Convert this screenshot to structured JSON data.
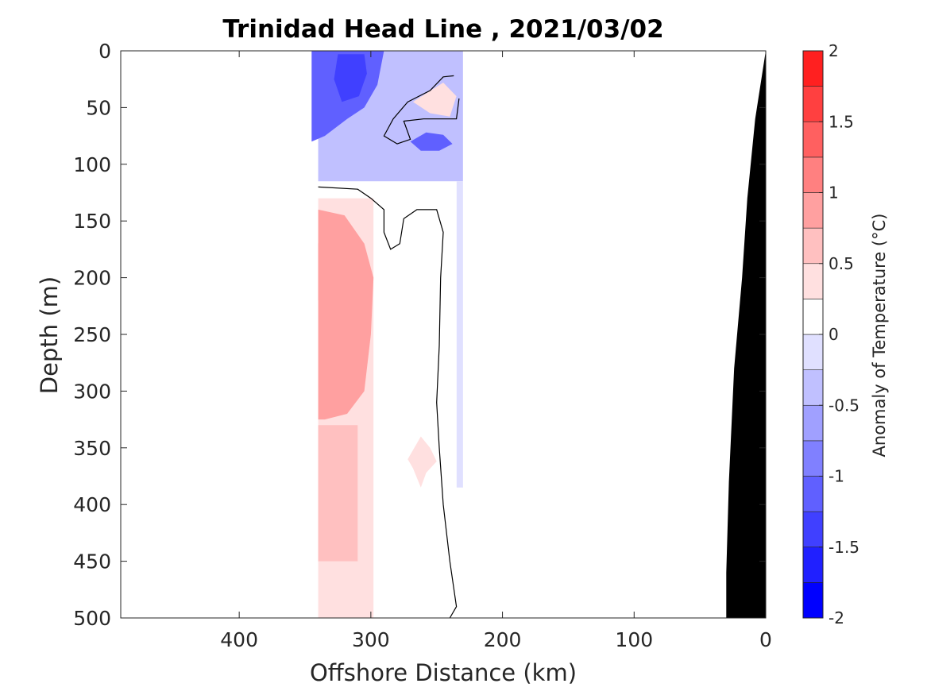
{
  "chart_data": {
    "type": "contour",
    "title": "Trinidad Head Line , 2021/03/02",
    "xlabel": "Offshore Distance (km)",
    "ylabel": "Depth (m)",
    "xlim": [
      490,
      0
    ],
    "ylim": [
      0,
      500
    ],
    "x_reversed": true,
    "y_reversed": true,
    "xticks": [
      400,
      300,
      200,
      100,
      0
    ],
    "yticks": [
      0,
      50,
      100,
      150,
      200,
      250,
      300,
      350,
      400,
      450,
      500
    ],
    "colorbar": {
      "label": "Anomaly of Temperature (°C)",
      "range": [
        -2,
        2
      ],
      "step": 0.25,
      "ticks": [
        "2",
        "1.5",
        "1",
        "0.5",
        "0",
        "-0.5",
        "-1",
        "-1.5",
        "-2"
      ],
      "colors": {
        "-2": "#0000ff",
        "-1.75": "#2020ff",
        "-1.5": "#4040ff",
        "-1.25": "#6060ff",
        "-1": "#8080ff",
        "-0.75": "#a0a0ff",
        "-0.5": "#c0c0ff",
        "-0.25": "#e0e0ff",
        "0": "#ffffff",
        "0.25": "#ffe0e0",
        "0.5": "#ffc0c0",
        "0.75": "#ffa0a0",
        "1": "#ff8080",
        "1.25": "#ff6060",
        "1.5": "#ff4040",
        "1.75": "#ff2020"
      }
    },
    "data_coverage": {
      "x_from_km": 340,
      "x_to_km": 230
    },
    "regions": [
      {
        "name": "deep-blue-core",
        "anomaly": -1.25,
        "points": [
          [
            345,
            0
          ],
          [
            290,
            0
          ],
          [
            295,
            30
          ],
          [
            305,
            50
          ],
          [
            318,
            60
          ],
          [
            335,
            75
          ],
          [
            345,
            80
          ]
        ]
      },
      {
        "name": "blue-core-dark",
        "anomaly": -1.5,
        "points": [
          [
            325,
            3
          ],
          [
            305,
            3
          ],
          [
            303,
            20
          ],
          [
            309,
            40
          ],
          [
            322,
            45
          ],
          [
            328,
            25
          ]
        ]
      },
      {
        "name": "blue-eddy",
        "anomaly": -1.25,
        "points": [
          [
            270,
            80
          ],
          [
            258,
            72
          ],
          [
            245,
            74
          ],
          [
            238,
            82
          ],
          [
            248,
            88
          ],
          [
            262,
            88
          ]
        ]
      },
      {
        "name": "warm-core",
        "anomaly": 1.0,
        "points": [
          [
            332,
            158
          ],
          [
            318,
            160
          ],
          [
            308,
            175
          ],
          [
            306,
            200
          ],
          [
            318,
            220
          ],
          [
            340,
            220
          ],
          [
            340,
            170
          ]
        ]
      },
      {
        "name": "warm-body",
        "anomaly": 0.75,
        "points": [
          [
            340,
            140
          ],
          [
            320,
            145
          ],
          [
            305,
            170
          ],
          [
            298,
            200
          ],
          [
            300,
            250
          ],
          [
            305,
            300
          ],
          [
            318,
            320
          ],
          [
            335,
            325
          ],
          [
            340,
            325
          ]
        ]
      },
      {
        "name": "warm-patch-350",
        "anomaly": 0.25,
        "points": [
          [
            262,
            340
          ],
          [
            255,
            350
          ],
          [
            250,
            362
          ],
          [
            258,
            372
          ],
          [
            262,
            385
          ],
          [
            268,
            368
          ],
          [
            272,
            360
          ]
        ]
      },
      {
        "name": "warm-patch-50",
        "anomaly": 0.25,
        "points": [
          [
            245,
            28
          ],
          [
            235,
            40
          ],
          [
            240,
            58
          ],
          [
            255,
            55
          ],
          [
            268,
            45
          ]
        ]
      }
    ],
    "contour_zero": [
      {
        "points": [
          [
            340,
            120
          ],
          [
            310,
            122
          ],
          [
            300,
            130
          ],
          [
            290,
            140
          ],
          [
            290,
            160
          ],
          [
            285,
            175
          ],
          [
            278,
            170
          ],
          [
            275,
            148
          ],
          [
            265,
            140
          ],
          [
            250,
            140
          ],
          [
            245,
            160
          ],
          [
            247,
            200
          ],
          [
            248,
            260
          ],
          [
            250,
            310
          ],
          [
            248,
            350
          ],
          [
            245,
            400
          ],
          [
            240,
            450
          ],
          [
            235,
            490
          ],
          [
            240,
            500
          ]
        ]
      },
      {
        "points": [
          [
            237,
            22
          ],
          [
            245,
            23
          ],
          [
            255,
            35
          ],
          [
            272,
            45
          ],
          [
            283,
            60
          ],
          [
            290,
            75
          ],
          [
            280,
            82
          ],
          [
            270,
            78
          ],
          [
            275,
            62
          ],
          [
            260,
            60
          ],
          [
            245,
            60
          ],
          [
            235,
            60
          ],
          [
            233,
            42
          ]
        ]
      }
    ],
    "seafloor": {
      "fill": "#000000",
      "points": [
        [
          0,
          0
        ],
        [
          8,
          60
        ],
        [
          14,
          130
        ],
        [
          18,
          200
        ],
        [
          24,
          280
        ],
        [
          28,
          380
        ],
        [
          30,
          460
        ],
        [
          30,
          500
        ],
        [
          0,
          500
        ]
      ]
    }
  }
}
